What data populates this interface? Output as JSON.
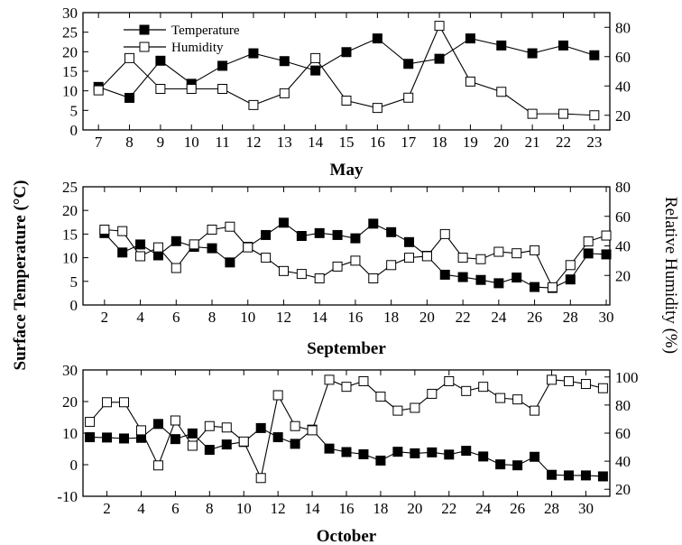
{
  "y_label_left": "Surface Temperature (°C)",
  "y_label_right": "Relative Humidity (%)",
  "legend": {
    "temperature": "Temperature",
    "humidity": "Humidity"
  },
  "colors": {
    "line": "#000000",
    "filled_marker": "#000000",
    "open_marker": "#ffffff"
  },
  "chart_data": [
    {
      "type": "line",
      "xlabel": "May",
      "x": [
        7,
        8,
        9,
        10,
        11,
        12,
        13,
        14,
        15,
        16,
        17,
        18,
        19,
        20,
        21,
        22,
        23
      ],
      "x_ticks": [
        7,
        8,
        9,
        10,
        11,
        12,
        13,
        14,
        15,
        16,
        17,
        18,
        19,
        20,
        21,
        22,
        23
      ],
      "xlim": [
        6.5,
        23.5
      ],
      "ylim_left": [
        0,
        30
      ],
      "yticks_left": [
        0,
        5,
        10,
        15,
        20,
        25,
        30
      ],
      "ylim_right": [
        10,
        90
      ],
      "yticks_right": [
        20,
        40,
        60,
        80
      ],
      "series": [
        {
          "name": "Temperature",
          "axis": "left",
          "marker": "filled-square",
          "values": [
            11,
            8.2,
            17.7,
            11.8,
            16.4,
            19.6,
            17.6,
            15.2,
            19.9,
            23.4,
            16.9,
            18.2,
            23.4,
            21.6,
            19.6,
            21.6,
            19.1
          ]
        },
        {
          "name": "Humidity",
          "axis": "right",
          "marker": "open-square",
          "values": [
            37,
            59,
            38,
            38,
            38,
            27,
            35,
            59,
            30,
            25,
            32,
            81,
            43,
            36,
            21,
            21,
            20
          ]
        }
      ]
    },
    {
      "type": "line",
      "xlabel": "September",
      "x": [
        2,
        3,
        4,
        5,
        6,
        7,
        8,
        9,
        10,
        11,
        12,
        13,
        14,
        15,
        16,
        17,
        18,
        19,
        20,
        21,
        22,
        23,
        24,
        25,
        26,
        27,
        28,
        29,
        30
      ],
      "x_ticks": [
        2,
        4,
        6,
        8,
        10,
        12,
        14,
        16,
        18,
        20,
        22,
        24,
        26,
        28,
        30
      ],
      "xlim": [
        0.8,
        30.2
      ],
      "ylim_left": [
        0,
        25
      ],
      "yticks_left": [
        0,
        5,
        10,
        15,
        20,
        25
      ],
      "ylim_right": [
        0,
        80
      ],
      "yticks_right": [
        20,
        40,
        60,
        80
      ],
      "series": [
        {
          "name": "Temperature",
          "axis": "left",
          "marker": "filled-square",
          "values": [
            15.2,
            11.1,
            12.8,
            10.5,
            13.5,
            12.3,
            12,
            9,
            12.3,
            14.8,
            17.4,
            14.6,
            15.2,
            14.8,
            14.1,
            17.2,
            15.4,
            13.3,
            10.4,
            6.4,
            5.9,
            5.3,
            4.6,
            5.8,
            3.8,
            3.6,
            5.4,
            10.9,
            10.7
          ]
        },
        {
          "name": "Humidity",
          "axis": "right",
          "marker": "open-square",
          "values": [
            51,
            50,
            33,
            39,
            25,
            41,
            51,
            53,
            39,
            32,
            23,
            21,
            18,
            26,
            30,
            18,
            27,
            32,
            33,
            48,
            32,
            31,
            36,
            35,
            37,
            12,
            27,
            43,
            47
          ]
        }
      ]
    },
    {
      "type": "line",
      "xlabel": "October",
      "x": [
        1,
        2,
        3,
        4,
        5,
        6,
        7,
        8,
        9,
        10,
        11,
        12,
        13,
        14,
        15,
        16,
        17,
        18,
        19,
        20,
        21,
        22,
        23,
        24,
        25,
        26,
        27,
        28,
        29,
        30,
        31
      ],
      "x_ticks": [
        2,
        4,
        6,
        8,
        10,
        12,
        14,
        16,
        18,
        20,
        22,
        24,
        26,
        28,
        30
      ],
      "xlim": [
        0.6,
        31.4
      ],
      "ylim_left": [
        -10,
        30
      ],
      "yticks_left": [
        -10,
        0,
        10,
        20,
        30
      ],
      "ylim_right": [
        15,
        105
      ],
      "yticks_right": [
        20,
        40,
        60,
        80,
        100
      ],
      "series": [
        {
          "name": "Temperature",
          "axis": "left",
          "marker": "filled-square",
          "values": [
            8.7,
            8.6,
            8.3,
            8.5,
            12.9,
            8.1,
            9.9,
            4.7,
            6.4,
            7.2,
            11.6,
            8.7,
            6.6,
            11.1,
            5.1,
            4,
            3.3,
            1.3,
            4.1,
            3.6,
            3.9,
            3.2,
            4.4,
            2.6,
            0.1,
            -0.2,
            2.5,
            -3.2,
            -3.4,
            -3.4,
            -3.7
          ]
        },
        {
          "name": "Humidity",
          "axis": "right",
          "marker": "open-square",
          "values": [
            68,
            82,
            82,
            62,
            37,
            69,
            51,
            65,
            64,
            54,
            28,
            87,
            65,
            62,
            98,
            93,
            97,
            86,
            76,
            78,
            88,
            97,
            90,
            93,
            85,
            84,
            76,
            98,
            97,
            95,
            92
          ]
        }
      ]
    }
  ]
}
